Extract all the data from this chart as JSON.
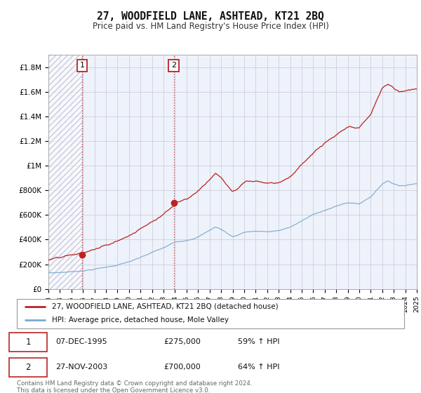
{
  "title": "27, WOODFIELD LANE, ASHTEAD, KT21 2BQ",
  "subtitle": "Price paid vs. HM Land Registry's House Price Index (HPI)",
  "ylabel_ticks": [
    "£0",
    "£200K",
    "£400K",
    "£600K",
    "£800K",
    "£1M",
    "£1.2M",
    "£1.4M",
    "£1.6M",
    "£1.8M"
  ],
  "ylabel_values": [
    0,
    200000,
    400000,
    600000,
    800000,
    1000000,
    1200000,
    1400000,
    1600000,
    1800000
  ],
  "ylim": [
    0,
    1900000
  ],
  "x_start_year": 1993,
  "x_end_year": 2025,
  "purchase1_date": 1995.92,
  "purchase1_price": 275000,
  "purchase2_date": 2003.9,
  "purchase2_price": 700000,
  "purchase1_label": "1",
  "purchase2_label": "2",
  "red_color": "#bb2222",
  "blue_color": "#7aaace",
  "legend_label1": "27, WOODFIELD LANE, ASHTEAD, KT21 2BQ (detached house)",
  "legend_label2": "HPI: Average price, detached house, Mole Valley",
  "table_row1": [
    "1",
    "07-DEC-1995",
    "£275,000",
    "59% ↑ HPI"
  ],
  "table_row2": [
    "2",
    "27-NOV-2003",
    "£700,000",
    "64% ↑ HPI"
  ],
  "footer": "Contains HM Land Registry data © Crown copyright and database right 2024.\nThis data is licensed under the Open Government Licence v3.0.",
  "background_color": "#ffffff",
  "plot_bg_color": "#eef2fa"
}
